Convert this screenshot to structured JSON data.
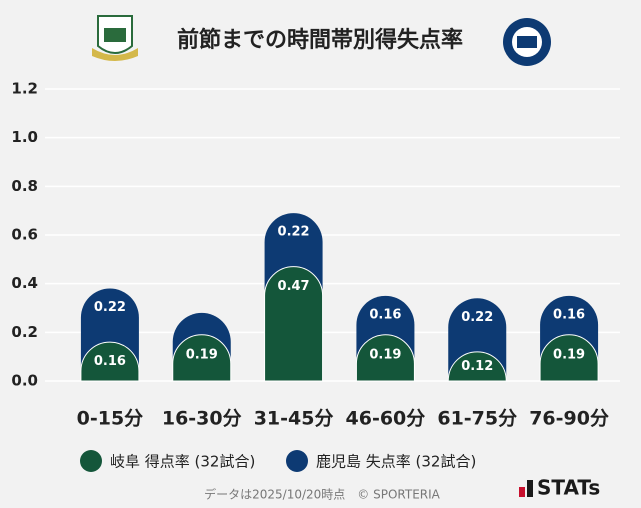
{
  "chart_data": {
    "type": "stacked-bar",
    "title": "前節までの時間帯別得失点率",
    "categories": [
      "0-15分",
      "16-30分",
      "31-45分",
      "46-60分",
      "61-75分",
      "76-90分"
    ],
    "series": [
      {
        "name": "岐阜 得点率 (32試合)",
        "color": "#14563a",
        "values": [
          0.16,
          0.19,
          0.47,
          0.19,
          0.12,
          0.19
        ]
      },
      {
        "name": "鹿児島 失点率 (32試合)",
        "color": "#0d3a73",
        "values": [
          0.22,
          0.09,
          0.22,
          0.16,
          0.22,
          0.16
        ],
        "value_labels": [
          "0.22",
          null,
          "0.22",
          "0.16",
          "0.22",
          "0.16"
        ]
      }
    ],
    "ylim": [
      0,
      1.2
    ],
    "yticks": [
      {
        "value": 0,
        "label": "0.0"
      },
      0.2,
      0.4,
      0.6,
      0.8,
      {
        "value": 1,
        "label": "1.0"
      },
      1.2
    ],
    "grid": true,
    "footnote": "データは2025/10/20時点　© SPORTERIA",
    "brand": "STATs"
  }
}
